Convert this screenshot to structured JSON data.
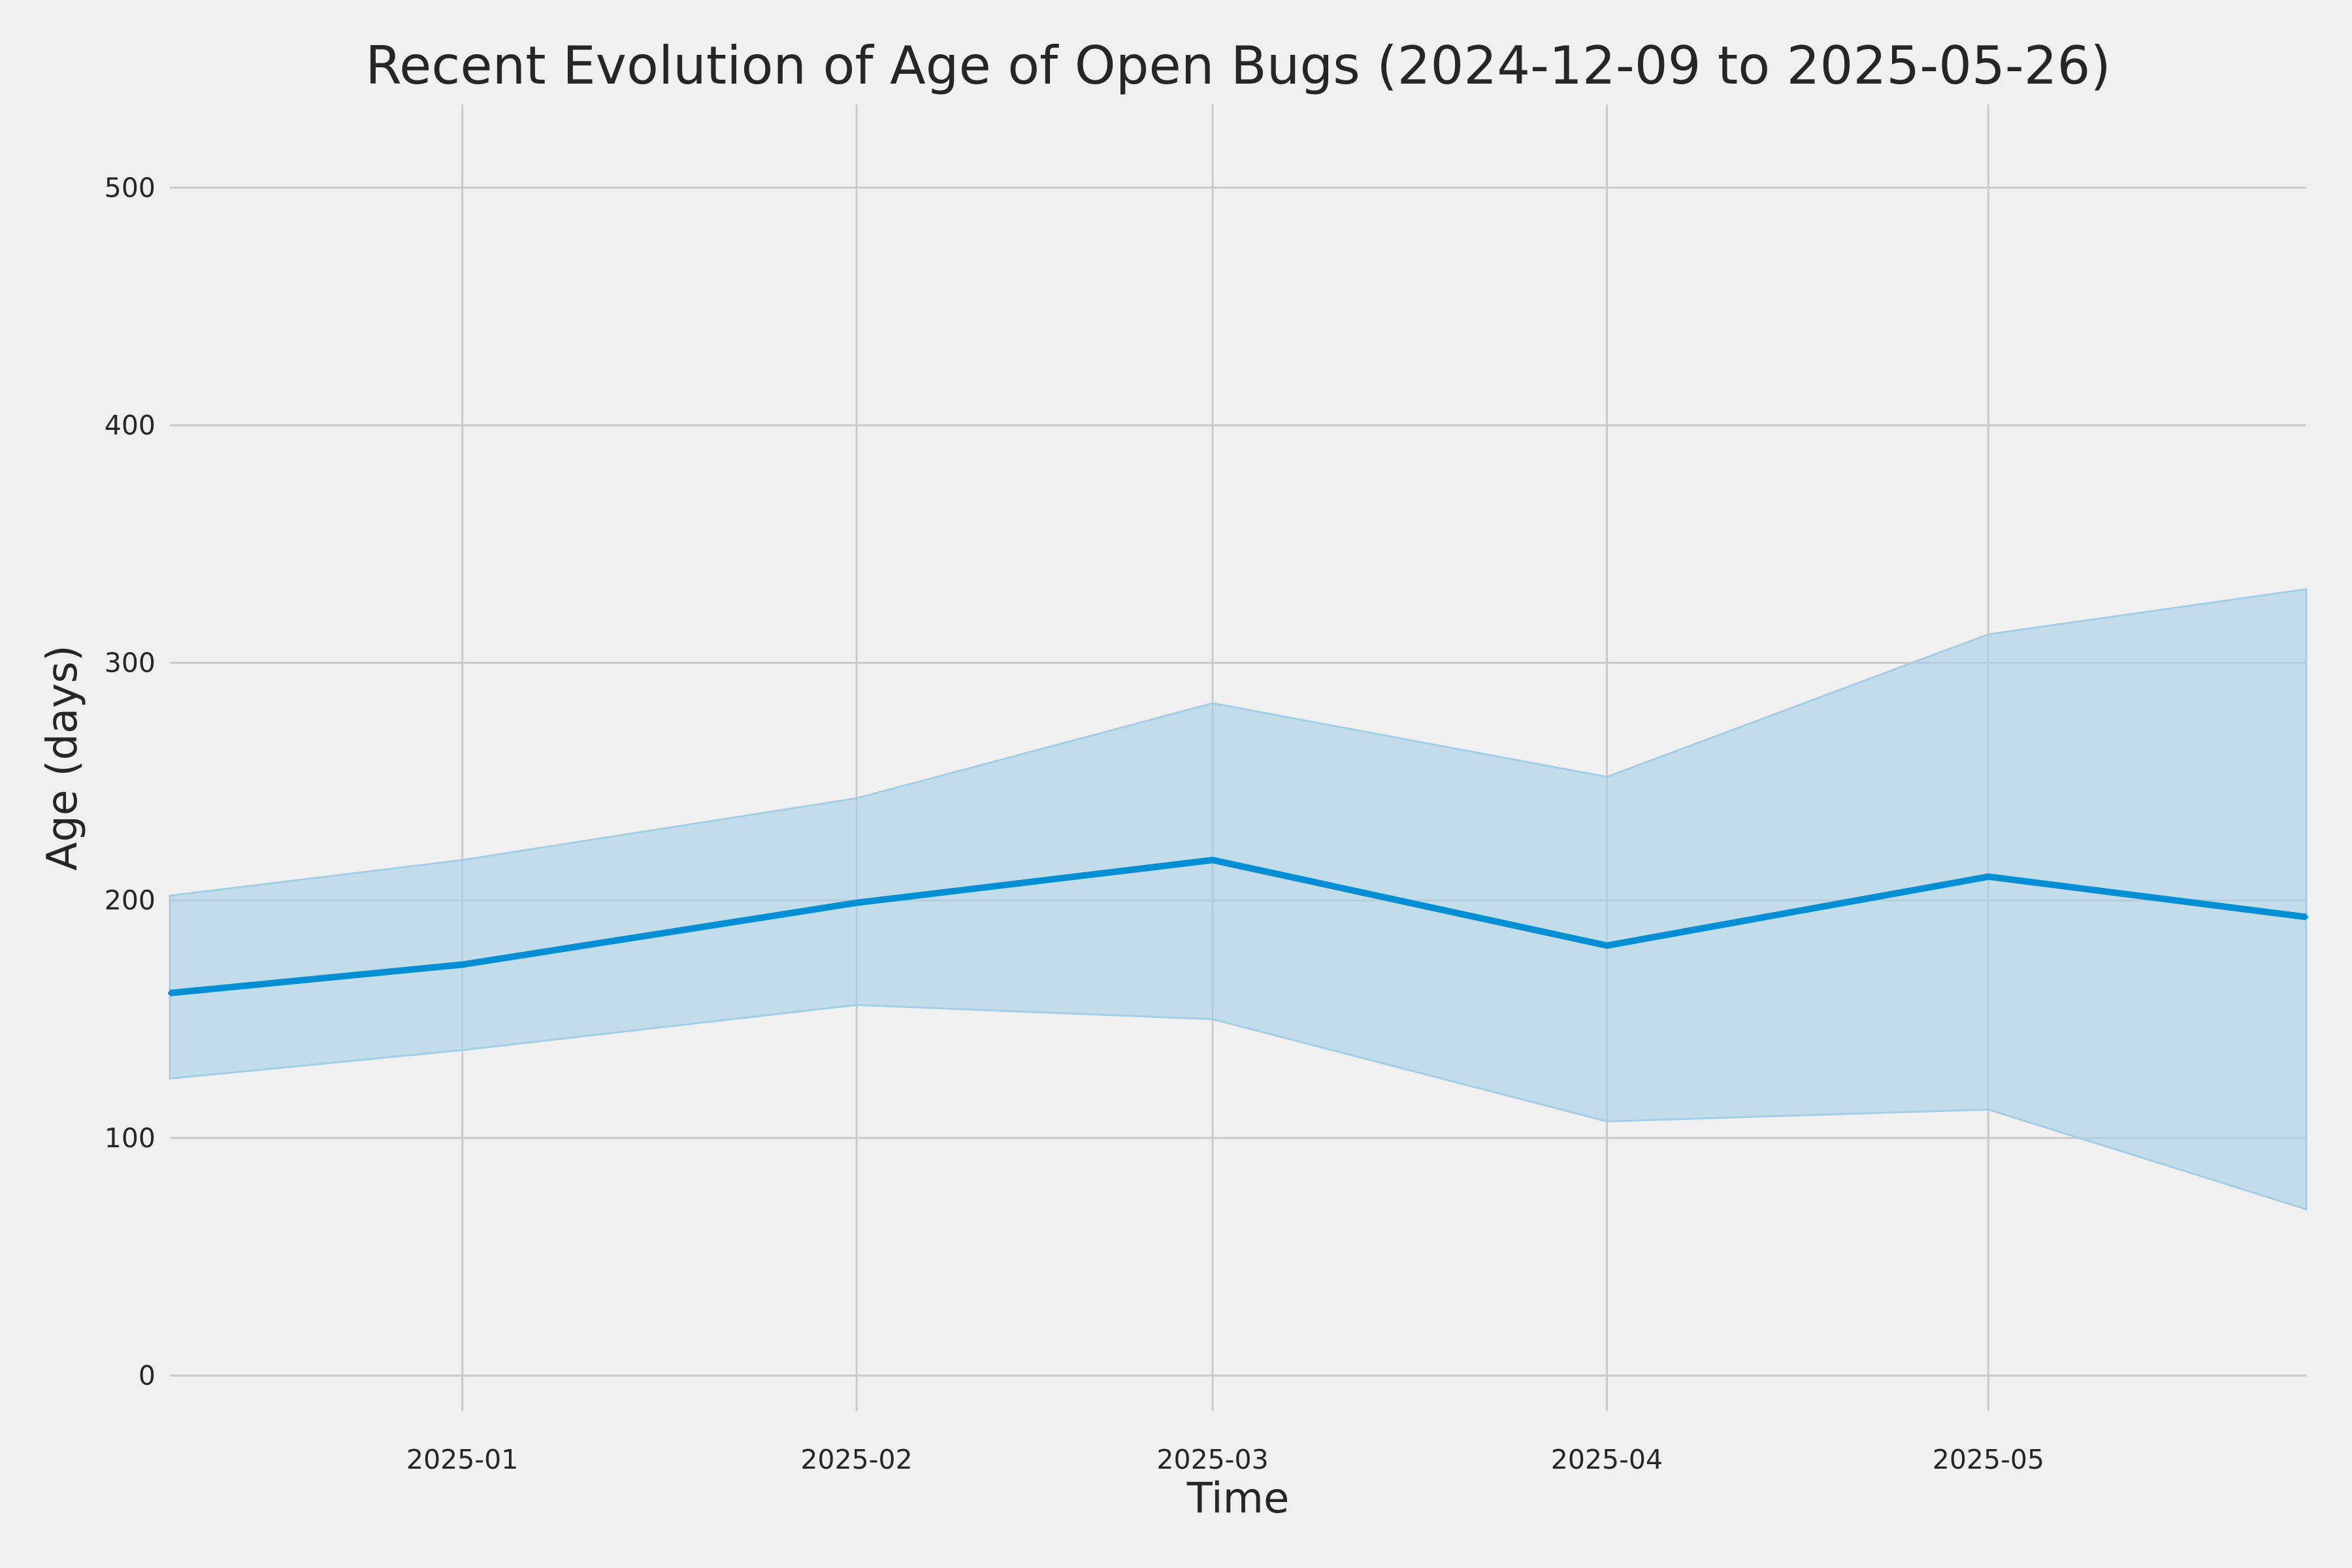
{
  "chart_data": {
    "type": "line",
    "title": "Recent Evolution of Age of Open Bugs (2024-12-09 to 2025-05-26)",
    "xlabel": "Time",
    "ylabel": "Age (days)",
    "x_axis_kind": "date",
    "xlim": [
      "2024-12-09",
      "2025-05-26"
    ],
    "ylim": [
      -15,
      535
    ],
    "x_ticks": [
      {
        "value": "2025-01-01",
        "label": "2025-01"
      },
      {
        "value": "2025-02-01",
        "label": "2025-02"
      },
      {
        "value": "2025-03-01",
        "label": "2025-03"
      },
      {
        "value": "2025-04-01",
        "label": "2025-04"
      },
      {
        "value": "2025-05-01",
        "label": "2025-05"
      }
    ],
    "y_ticks": [
      0,
      100,
      200,
      300,
      400,
      500
    ],
    "grid": true,
    "x": [
      "2024-12-09",
      "2025-01-01",
      "2025-02-01",
      "2025-03-01",
      "2025-04-01",
      "2025-05-01",
      "2025-05-26"
    ],
    "series": [
      {
        "values": [
          161,
          173,
          199,
          217,
          181,
          210,
          193
        ],
        "band_upper": [
          202,
          217,
          243,
          283,
          252,
          312,
          331
        ],
        "band_lower": [
          125,
          137,
          156,
          150,
          107,
          112,
          70
        ],
        "line_color": "#008fd5",
        "band_color": "#a3cfe6"
      }
    ],
    "colors": {
      "background": "#f0f0f0",
      "grid": "#cbcbcb",
      "text": "#262626"
    }
  }
}
